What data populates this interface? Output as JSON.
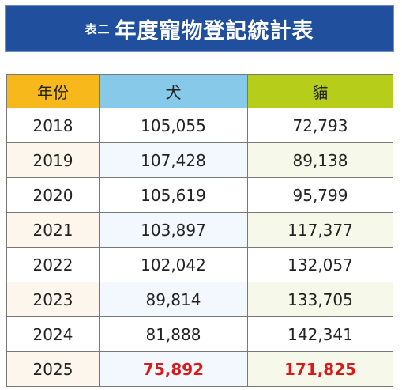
{
  "title": {
    "prefix": "表二",
    "main": "年度寵物登記統計表"
  },
  "table": {
    "headers": {
      "year": "年份",
      "dog": "犬",
      "cat": "貓"
    },
    "rows": [
      {
        "year": "2018",
        "dog": "105,055",
        "cat": "72,793"
      },
      {
        "year": "2019",
        "dog": "107,428",
        "cat": "89,138"
      },
      {
        "year": "2020",
        "dog": "105,619",
        "cat": "95,799"
      },
      {
        "year": "2021",
        "dog": "103,897",
        "cat": "117,377"
      },
      {
        "year": "2022",
        "dog": "102,042",
        "cat": "132,057"
      },
      {
        "year": "2023",
        "dog": "89,814",
        "cat": "133,705"
      },
      {
        "year": "2024",
        "dog": "81,888",
        "cat": "142,341"
      },
      {
        "year": "2025",
        "dog": "75,892",
        "cat": "171,825"
      }
    ],
    "highlight_color": "#d71a1a",
    "header_colors": {
      "year": "#f6b81a",
      "dog": "#86c9e8",
      "cat": "#b6cd1a"
    },
    "banner_color": "#1f4f9d"
  }
}
